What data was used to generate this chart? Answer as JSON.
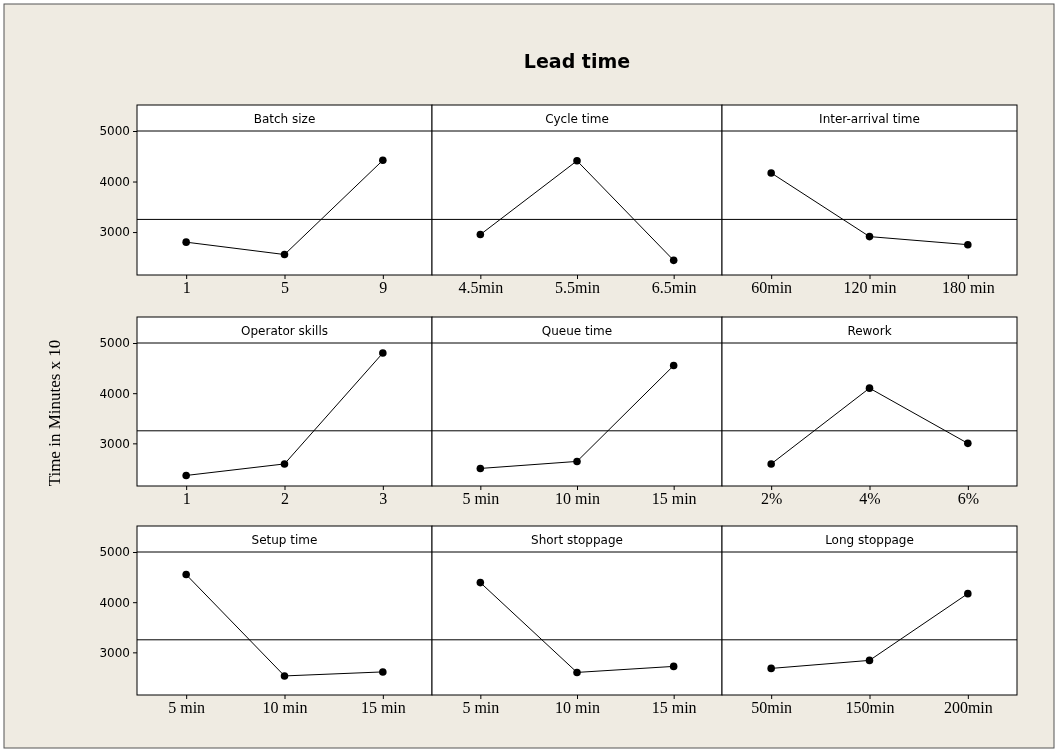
{
  "chart_data": [
    {
      "type": "line",
      "title": "Batch size",
      "annotations": [
        "Lead time"
      ],
      "categories": [
        "1",
        "5",
        "9"
      ],
      "values": [
        2800,
        2555,
        4420
      ],
      "color": "#000000",
      "marker": "circle",
      "ylim": [
        2150,
        5000
      ],
      "yticks": [
        3000,
        4000,
        5000
      ],
      "ref_lines": [
        {
          "axis": "y",
          "value": 3250,
          "color": "#000000"
        }
      ]
    },
    {
      "type": "line",
      "title": "Cycle time",
      "categories": [
        "4.5min",
        "5.5min",
        "6.5min"
      ],
      "values": [
        2950,
        4410,
        2440
      ],
      "color": "#000000",
      "marker": "circle",
      "ylim": [
        2150,
        5000
      ],
      "yticks": [
        3000,
        4000,
        5000
      ],
      "tick_labels": "x",
      "ref_lines": [
        {
          "axis": "y",
          "value": 3250,
          "color": "#000000"
        }
      ]
    },
    {
      "type": "line",
      "title": "Inter-arrival time",
      "categories": [
        "60min",
        "120 min",
        "180 min"
      ],
      "values": [
        4170,
        2910,
        2750
      ],
      "color": "#000000",
      "marker": "circle",
      "ylim": [
        2150,
        5000
      ],
      "yticks": [
        3000,
        4000,
        5000
      ],
      "tick_labels": "x",
      "ref_lines": [
        {
          "axis": "y",
          "value": 3250,
          "color": "#000000"
        }
      ]
    },
    {
      "type": "line",
      "title": "Operator skills",
      "ylabel": "Time in Minutes x 10",
      "categories": [
        "1",
        "2",
        "3"
      ],
      "values": [
        2360,
        2590,
        4800
      ],
      "color": "#000000",
      "marker": "circle",
      "ylim": [
        2150,
        5000
      ],
      "yticks": [
        3000,
        4000,
        5000
      ],
      "ref_lines": [
        {
          "axis": "y",
          "value": 3250,
          "color": "#000000"
        }
      ]
    },
    {
      "type": "line",
      "title": "Queue time",
      "categories": [
        "5 min",
        "10 min",
        "15 min"
      ],
      "values": [
        2500,
        2640,
        4550
      ],
      "color": "#000000",
      "marker": "circle",
      "ylim": [
        2150,
        5000
      ],
      "yticks": [
        3000,
        4000,
        5000
      ],
      "tick_labels": "x",
      "ref_lines": [
        {
          "axis": "y",
          "value": 3250,
          "color": "#000000"
        }
      ]
    },
    {
      "type": "line",
      "title": "Rework",
      "categories": [
        "2%",
        "4%",
        "6%"
      ],
      "values": [
        2590,
        4100,
        3000
      ],
      "color": "#000000",
      "marker": "circle",
      "ylim": [
        2150,
        5000
      ],
      "yticks": [
        3000,
        4000,
        5000
      ],
      "tick_labels": "x",
      "ref_lines": [
        {
          "axis": "y",
          "value": 3250,
          "color": "#000000"
        }
      ]
    },
    {
      "type": "line",
      "title": "Setup time",
      "categories": [
        "5 min",
        "10 min",
        "15 min"
      ],
      "values": [
        4550,
        2530,
        2610
      ],
      "color": "#000000",
      "marker": "circle",
      "ylim": [
        2150,
        5000
      ],
      "yticks": [
        3000,
        4000,
        5000
      ],
      "ref_lines": [
        {
          "axis": "y",
          "value": 3250,
          "color": "#000000"
        }
      ]
    },
    {
      "type": "line",
      "title": "Short stoppage",
      "categories": [
        "5 min",
        "10 min",
        "15 min"
      ],
      "values": [
        4390,
        2600,
        2720
      ],
      "color": "#000000",
      "marker": "circle",
      "ylim": [
        2150,
        5000
      ],
      "yticks": [
        3000,
        4000,
        5000
      ],
      "tick_labels": "x",
      "ref_lines": [
        {
          "axis": "y",
          "value": 3250,
          "color": "#000000"
        }
      ]
    },
    {
      "type": "line",
      "title": "Long stoppage",
      "categories": [
        "50min",
        "150min",
        "200min"
      ],
      "values": [
        2680,
        2840,
        4170
      ],
      "color": "#000000",
      "marker": "circle",
      "ylim": [
        2150,
        5000
      ],
      "yticks": [
        3000,
        4000,
        5000
      ],
      "tick_labels": "x",
      "ref_lines": [
        {
          "axis": "y",
          "value": 3250,
          "color": "#000000"
        }
      ]
    }
  ]
}
